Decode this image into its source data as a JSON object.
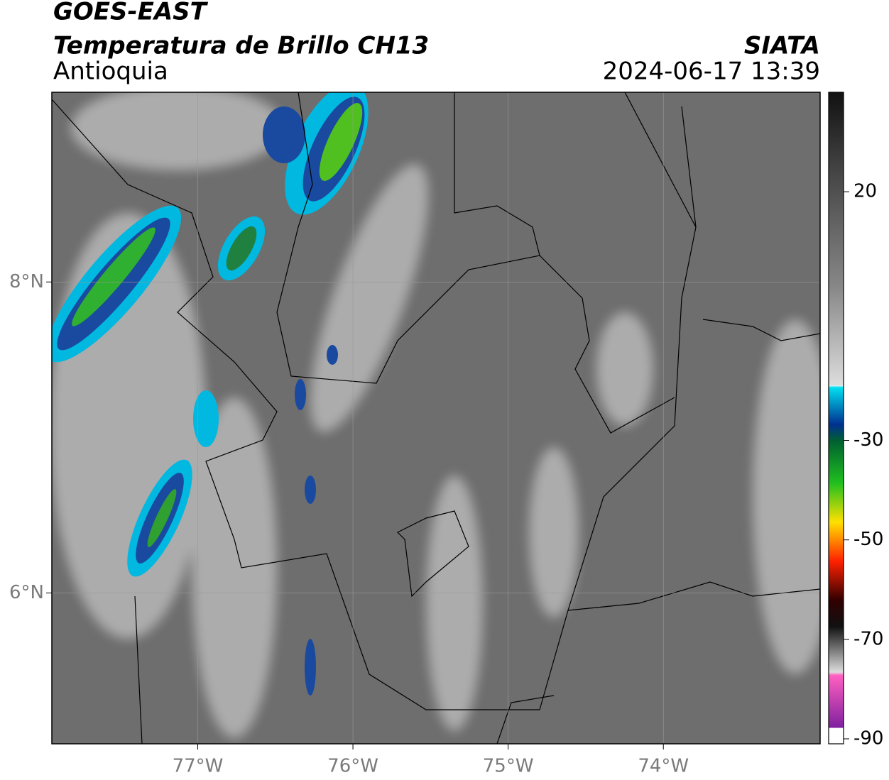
{
  "header": {
    "title": "GOES-EAST",
    "subtitle": "Temperatura de Brillo CH13",
    "region": "Antioquia",
    "source": "SIATA",
    "datetime": "2024-06-17 13:39"
  },
  "map": {
    "xlim": [
      -77.94,
      -72.99
    ],
    "ylim": [
      5.03,
      9.22
    ],
    "xticks": [
      {
        "value": -77,
        "label": "77°W"
      },
      {
        "value": -76,
        "label": "76°W"
      },
      {
        "value": -75,
        "label": "75°W"
      },
      {
        "value": -74,
        "label": "74°W"
      }
    ],
    "yticks": [
      {
        "value": 6,
        "label": "6°N"
      },
      {
        "value": 8,
        "label": "8°N"
      }
    ],
    "grid": true
  },
  "colorbar": {
    "lim": [
      -91,
      40
    ],
    "ticks": [
      20,
      -30,
      -50,
      -70,
      -90
    ]
  }
}
